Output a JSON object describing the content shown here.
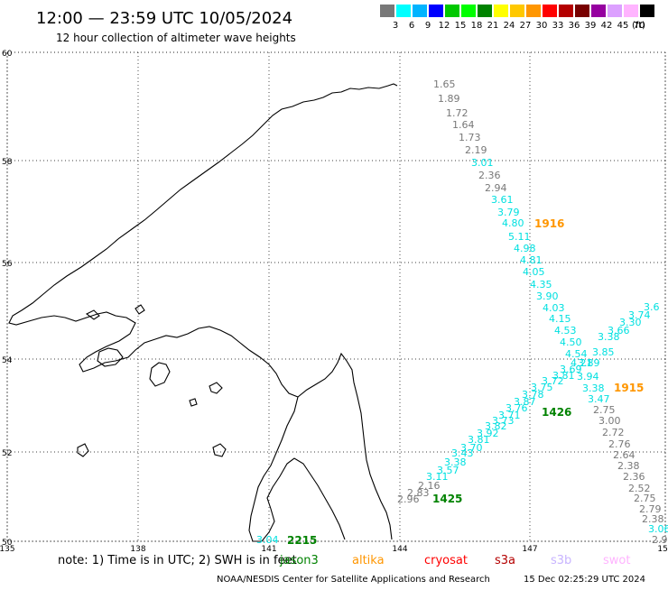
{
  "header": {
    "title": "12:00 — 23:59 UTC 10/05/2024",
    "subtitle": "12 hour collection of altimeter wave heights"
  },
  "scale": {
    "unit": "(ft)",
    "bins": [
      {
        "label": "3",
        "color": "#787878"
      },
      {
        "label": "6",
        "color": "#00ffff"
      },
      {
        "label": "9",
        "color": "#00b4ff"
      },
      {
        "label": "12",
        "color": "#0000ff"
      },
      {
        "label": "15",
        "color": "#00c800"
      },
      {
        "label": "18",
        "color": "#00ff00"
      },
      {
        "label": "21",
        "color": "#008200"
      },
      {
        "label": "24",
        "color": "#ffff00"
      },
      {
        "label": "27",
        "color": "#ffc800"
      },
      {
        "label": "30",
        "color": "#ff9600"
      },
      {
        "label": "33",
        "color": "#ff0000"
      },
      {
        "label": "36",
        "color": "#b40000"
      },
      {
        "label": "39",
        "color": "#780000"
      },
      {
        "label": "42",
        "color": "#9600a0"
      },
      {
        "label": "45",
        "color": "#dca0ff"
      },
      {
        "label": "70",
        "color": "#ffb4ff"
      },
      {
        "label": "",
        "color": "#000000"
      }
    ]
  },
  "axes": {
    "lat_labels": [
      "60",
      "58",
      "56",
      "54",
      "52",
      "50"
    ],
    "lon_labels": [
      "135",
      "138",
      "141",
      "144",
      "147",
      "150"
    ]
  },
  "colors": {
    "gray": "#787878",
    "cyan": "#00e0e0",
    "orange": "#ff9600",
    "green": "#008200",
    "red": "#ff0000",
    "darkred": "#b40000",
    "lavender": "#c8b4ff",
    "pink": "#ffb4ff"
  },
  "tracks": [
    {
      "name": "track-1916",
      "time_label": "1916",
      "time_label_color": "orange",
      "points": [
        {
          "v": "1.65",
          "c": "gray"
        },
        {
          "v": "1.89",
          "c": "gray"
        },
        {
          "v": "1.72",
          "c": "gray"
        },
        {
          "v": "1.64",
          "c": "gray"
        },
        {
          "v": "1.73",
          "c": "gray"
        },
        {
          "v": "2.19",
          "c": "gray"
        },
        {
          "v": "3.01",
          "c": "cyan"
        },
        {
          "v": "2.36",
          "c": "gray"
        },
        {
          "v": "2.94",
          "c": "gray"
        },
        {
          "v": "3.61",
          "c": "cyan"
        },
        {
          "v": "3.79",
          "c": "cyan"
        },
        {
          "v": "4.80",
          "c": "cyan"
        },
        {
          "v": "5.11",
          "c": "cyan"
        },
        {
          "v": "4.98",
          "c": "cyan"
        },
        {
          "v": "4.81",
          "c": "cyan"
        },
        {
          "v": "4.05",
          "c": "cyan"
        },
        {
          "v": "4.35",
          "c": "cyan"
        },
        {
          "v": "3.90",
          "c": "cyan"
        },
        {
          "v": "4.03",
          "c": "cyan"
        },
        {
          "v": "4.15",
          "c": "cyan"
        },
        {
          "v": "4.53",
          "c": "cyan"
        },
        {
          "v": "4.50",
          "c": "cyan"
        },
        {
          "v": "4.54",
          "c": "cyan"
        },
        {
          "v": "4.21",
          "c": "cyan"
        },
        {
          "v": "3.94",
          "c": "cyan"
        },
        {
          "v": "3.38",
          "c": "cyan"
        },
        {
          "v": "3.47",
          "c": "cyan"
        },
        {
          "v": "2.75",
          "c": "gray"
        },
        {
          "v": "3.00",
          "c": "gray"
        },
        {
          "v": "2.72",
          "c": "gray"
        },
        {
          "v": "2.76",
          "c": "gray"
        },
        {
          "v": "2.64",
          "c": "gray"
        },
        {
          "v": "2.38",
          "c": "gray"
        },
        {
          "v": "2.36",
          "c": "gray"
        },
        {
          "v": "2.52",
          "c": "gray"
        },
        {
          "v": "2.75",
          "c": "gray"
        },
        {
          "v": "2.79",
          "c": "gray"
        },
        {
          "v": "2.38",
          "c": "gray"
        },
        {
          "v": "3.06",
          "c": "cyan"
        },
        {
          "v": "2.9",
          "c": "gray"
        }
      ]
    },
    {
      "name": "track-1425",
      "time_label": "1425",
      "time_label_color": "green",
      "points": [
        {
          "v": "2.96",
          "c": "gray"
        },
        {
          "v": "2.83",
          "c": "gray"
        },
        {
          "v": "2.16",
          "c": "gray"
        },
        {
          "v": "3.11",
          "c": "cyan"
        },
        {
          "v": "3.57",
          "c": "cyan"
        },
        {
          "v": "3.38",
          "c": "cyan"
        },
        {
          "v": "3.43",
          "c": "cyan"
        },
        {
          "v": "3.70",
          "c": "cyan"
        },
        {
          "v": "3.81",
          "c": "cyan"
        },
        {
          "v": "3.92",
          "c": "cyan"
        },
        {
          "v": "3.82",
          "c": "cyan"
        },
        {
          "v": "3.73",
          "c": "cyan"
        },
        {
          "v": "3.71",
          "c": "cyan"
        },
        {
          "v": "3.76",
          "c": "cyan"
        },
        {
          "v": "3.87",
          "c": "cyan"
        },
        {
          "v": "3.78",
          "c": "cyan"
        },
        {
          "v": "3.75",
          "c": "cyan"
        },
        {
          "v": "3.72",
          "c": "cyan"
        },
        {
          "v": "3.81",
          "c": "cyan"
        },
        {
          "v": "3.69",
          "c": "cyan"
        },
        {
          "v": "3.89",
          "c": "cyan"
        },
        {
          "v": "3.85",
          "c": "cyan"
        },
        {
          "v": "3.38",
          "c": "cyan"
        },
        {
          "v": "3.66",
          "c": "cyan"
        },
        {
          "v": "3.30",
          "c": "cyan"
        },
        {
          "v": "3.74",
          "c": "cyan"
        },
        {
          "v": "3.6",
          "c": "cyan"
        }
      ]
    },
    {
      "name": "track-2215",
      "time_label": "2215",
      "time_label_color": "green",
      "points": [
        {
          "v": "3.04",
          "c": "cyan"
        }
      ]
    }
  ],
  "extra_time_labels": [
    {
      "text": "1426",
      "c": "green"
    },
    {
      "text": "1915",
      "c": "orange"
    }
  ],
  "footer": {
    "note": "note: 1) Time is in UTC; 2) SWH is in feet",
    "satellites": [
      {
        "name": "jason3",
        "c": "green"
      },
      {
        "name": "altika",
        "c": "orange"
      },
      {
        "name": "cryosat",
        "c": "red"
      },
      {
        "name": "s3a",
        "c": "darkred"
      },
      {
        "name": "s3b",
        "c": "lavender"
      },
      {
        "name": "swot",
        "c": "pink"
      }
    ],
    "credit": "NOAA/NESDIS Center for Satellite Applications and Research",
    "generated": "15 Dec 02:25:29 UTC 2024"
  }
}
